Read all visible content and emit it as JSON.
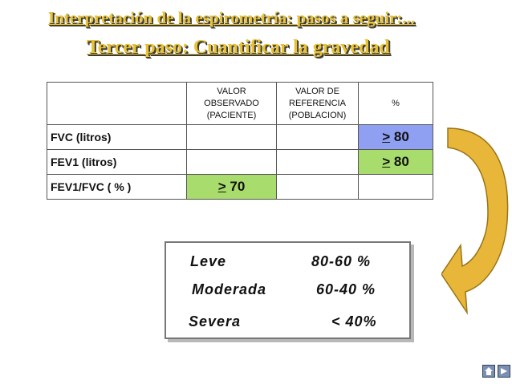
{
  "title": "Interpretación de la espirometría: pasos a seguir:...",
  "subtitle": "Tercer paso: Cuantificar la gravedad",
  "table": {
    "headers": [
      "",
      "VALOR\nOBSERVADO\n(PACIENTE)",
      "VALOR DE\nREFERENCIA\n(POBLACION)",
      "%"
    ],
    "rows": [
      {
        "label": "FVC   (litros)",
        "cells": [
          "",
          "",
          "> 80"
        ]
      },
      {
        "label": "FEV1   (litros)",
        "cells": [
          "",
          "",
          "> 80"
        ]
      },
      {
        "label": "FEV1/FVC ( % )",
        "cells": [
          "> 70",
          "",
          ""
        ]
      }
    ]
  },
  "severity": [
    {
      "name": "Leve",
      "range": "80-60 %"
    },
    {
      "name": "Moderada",
      "range": "60-40 %"
    },
    {
      "name": "Severa",
      "range": "< 40%"
    }
  ],
  "colors": {
    "title": "#e8c233",
    "blue_cell": "#8f9ff1",
    "green_cell": "#a8dc6c",
    "arrow": "#e8b73a"
  },
  "icons": [
    "home-icon",
    "next-slide-icon"
  ]
}
